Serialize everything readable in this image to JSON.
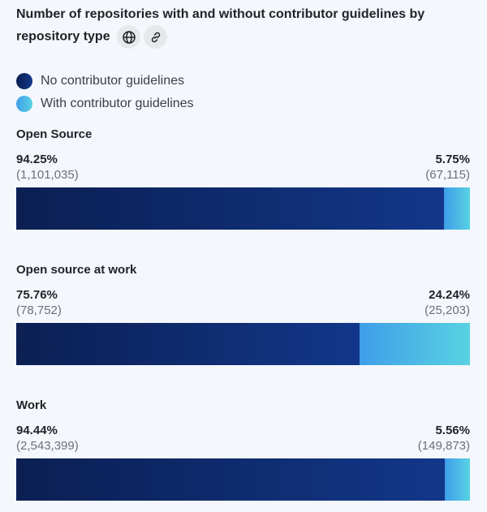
{
  "chart_data": {
    "type": "bar",
    "stacked": true,
    "orientation": "horizontal",
    "title": "Number of repositories with and without contributor guidelines by repository type",
    "legend": [
      "No contributor guidelines",
      "With contributor guidelines"
    ],
    "legend_position": "top-left",
    "colors": {
      "no_guidelines": "#12378a",
      "with_guidelines": "#4fc0e6"
    },
    "icons": [
      "globe-icon",
      "link-icon"
    ],
    "groups": [
      {
        "label": "Open Source",
        "no_pct": "94.25%",
        "no_count": "(1,101,035)",
        "with_pct": "5.75%",
        "with_count": "(67,115)",
        "no_value": 94.25,
        "with_value": 5.75
      },
      {
        "label": "Open source at work",
        "no_pct": "75.76%",
        "no_count": "(78,752)",
        "with_pct": "24.24%",
        "with_count": "(25,203)",
        "no_value": 75.76,
        "with_value": 24.24
      },
      {
        "label": "Work",
        "no_pct": "94.44%",
        "no_count": "(2,543,399)",
        "with_pct": "5.56%",
        "with_count": "(149,873)",
        "no_value": 94.44,
        "with_value": 5.56
      }
    ]
  }
}
